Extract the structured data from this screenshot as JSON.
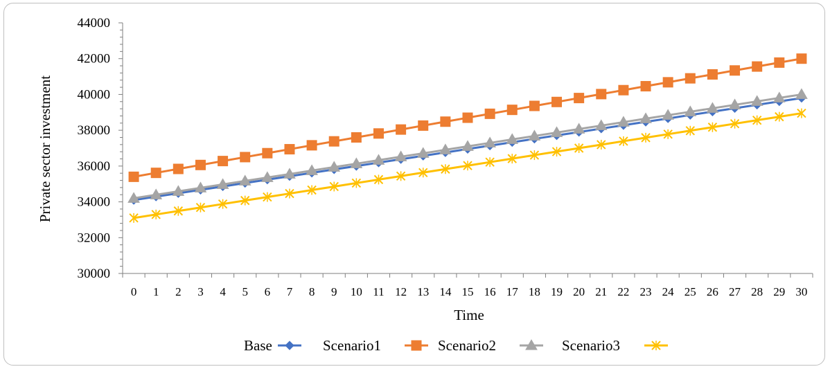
{
  "chart_data": {
    "type": "line",
    "title": "",
    "xlabel": "Time",
    "ylabel": "Private sector investment",
    "ylim": [
      30000,
      44000
    ],
    "yticks": [
      30000,
      32000,
      34000,
      36000,
      38000,
      40000,
      42000,
      44000
    ],
    "x": [
      0,
      1,
      2,
      3,
      4,
      5,
      6,
      7,
      8,
      9,
      10,
      11,
      12,
      13,
      14,
      15,
      16,
      17,
      18,
      19,
      20,
      21,
      22,
      23,
      24,
      25,
      26,
      27,
      28,
      29,
      30
    ],
    "legend_position": "bottom",
    "grid": false,
    "series": [
      {
        "name": "Base",
        "color": "#4472c4",
        "marker": "diamond",
        "values": [
          34100,
          34290,
          34480,
          34670,
          34860,
          35050,
          35240,
          35430,
          35620,
          35810,
          36000,
          36190,
          36380,
          36570,
          36760,
          36950,
          37140,
          37330,
          37520,
          37710,
          37900,
          38090,
          38280,
          38470,
          38660,
          38850,
          39040,
          39230,
          39420,
          39610,
          39800
        ]
      },
      {
        "name": "Scenario1",
        "color": "#ed7d31",
        "marker": "square",
        "values": [
          35400,
          35620,
          35840,
          36060,
          36280,
          36500,
          36720,
          36940,
          37160,
          37380,
          37600,
          37820,
          38040,
          38260,
          38480,
          38700,
          38920,
          39140,
          39360,
          39580,
          39800,
          40020,
          40240,
          40460,
          40680,
          40900,
          41120,
          41340,
          41560,
          41780,
          42000
        ]
      },
      {
        "name": "Scenario2",
        "color": "#a5a5a5",
        "marker": "triangle",
        "values": [
          34200,
          34393,
          34587,
          34780,
          34973,
          35167,
          35360,
          35553,
          35747,
          35940,
          36133,
          36327,
          36520,
          36713,
          36907,
          37100,
          37293,
          37487,
          37680,
          37873,
          38067,
          38260,
          38453,
          38647,
          38840,
          39033,
          39227,
          39420,
          39613,
          39807,
          40000
        ]
      },
      {
        "name": "Scenario3",
        "color": "#ffc000",
        "marker": "star",
        "values": [
          33100,
          33295,
          33490,
          33685,
          33880,
          34075,
          34270,
          34465,
          34660,
          34855,
          35050,
          35245,
          35440,
          35635,
          35830,
          36025,
          36220,
          36415,
          36610,
          36805,
          37000,
          37195,
          37390,
          37585,
          37780,
          37975,
          38170,
          38365,
          38560,
          38755,
          38950
        ]
      }
    ]
  }
}
